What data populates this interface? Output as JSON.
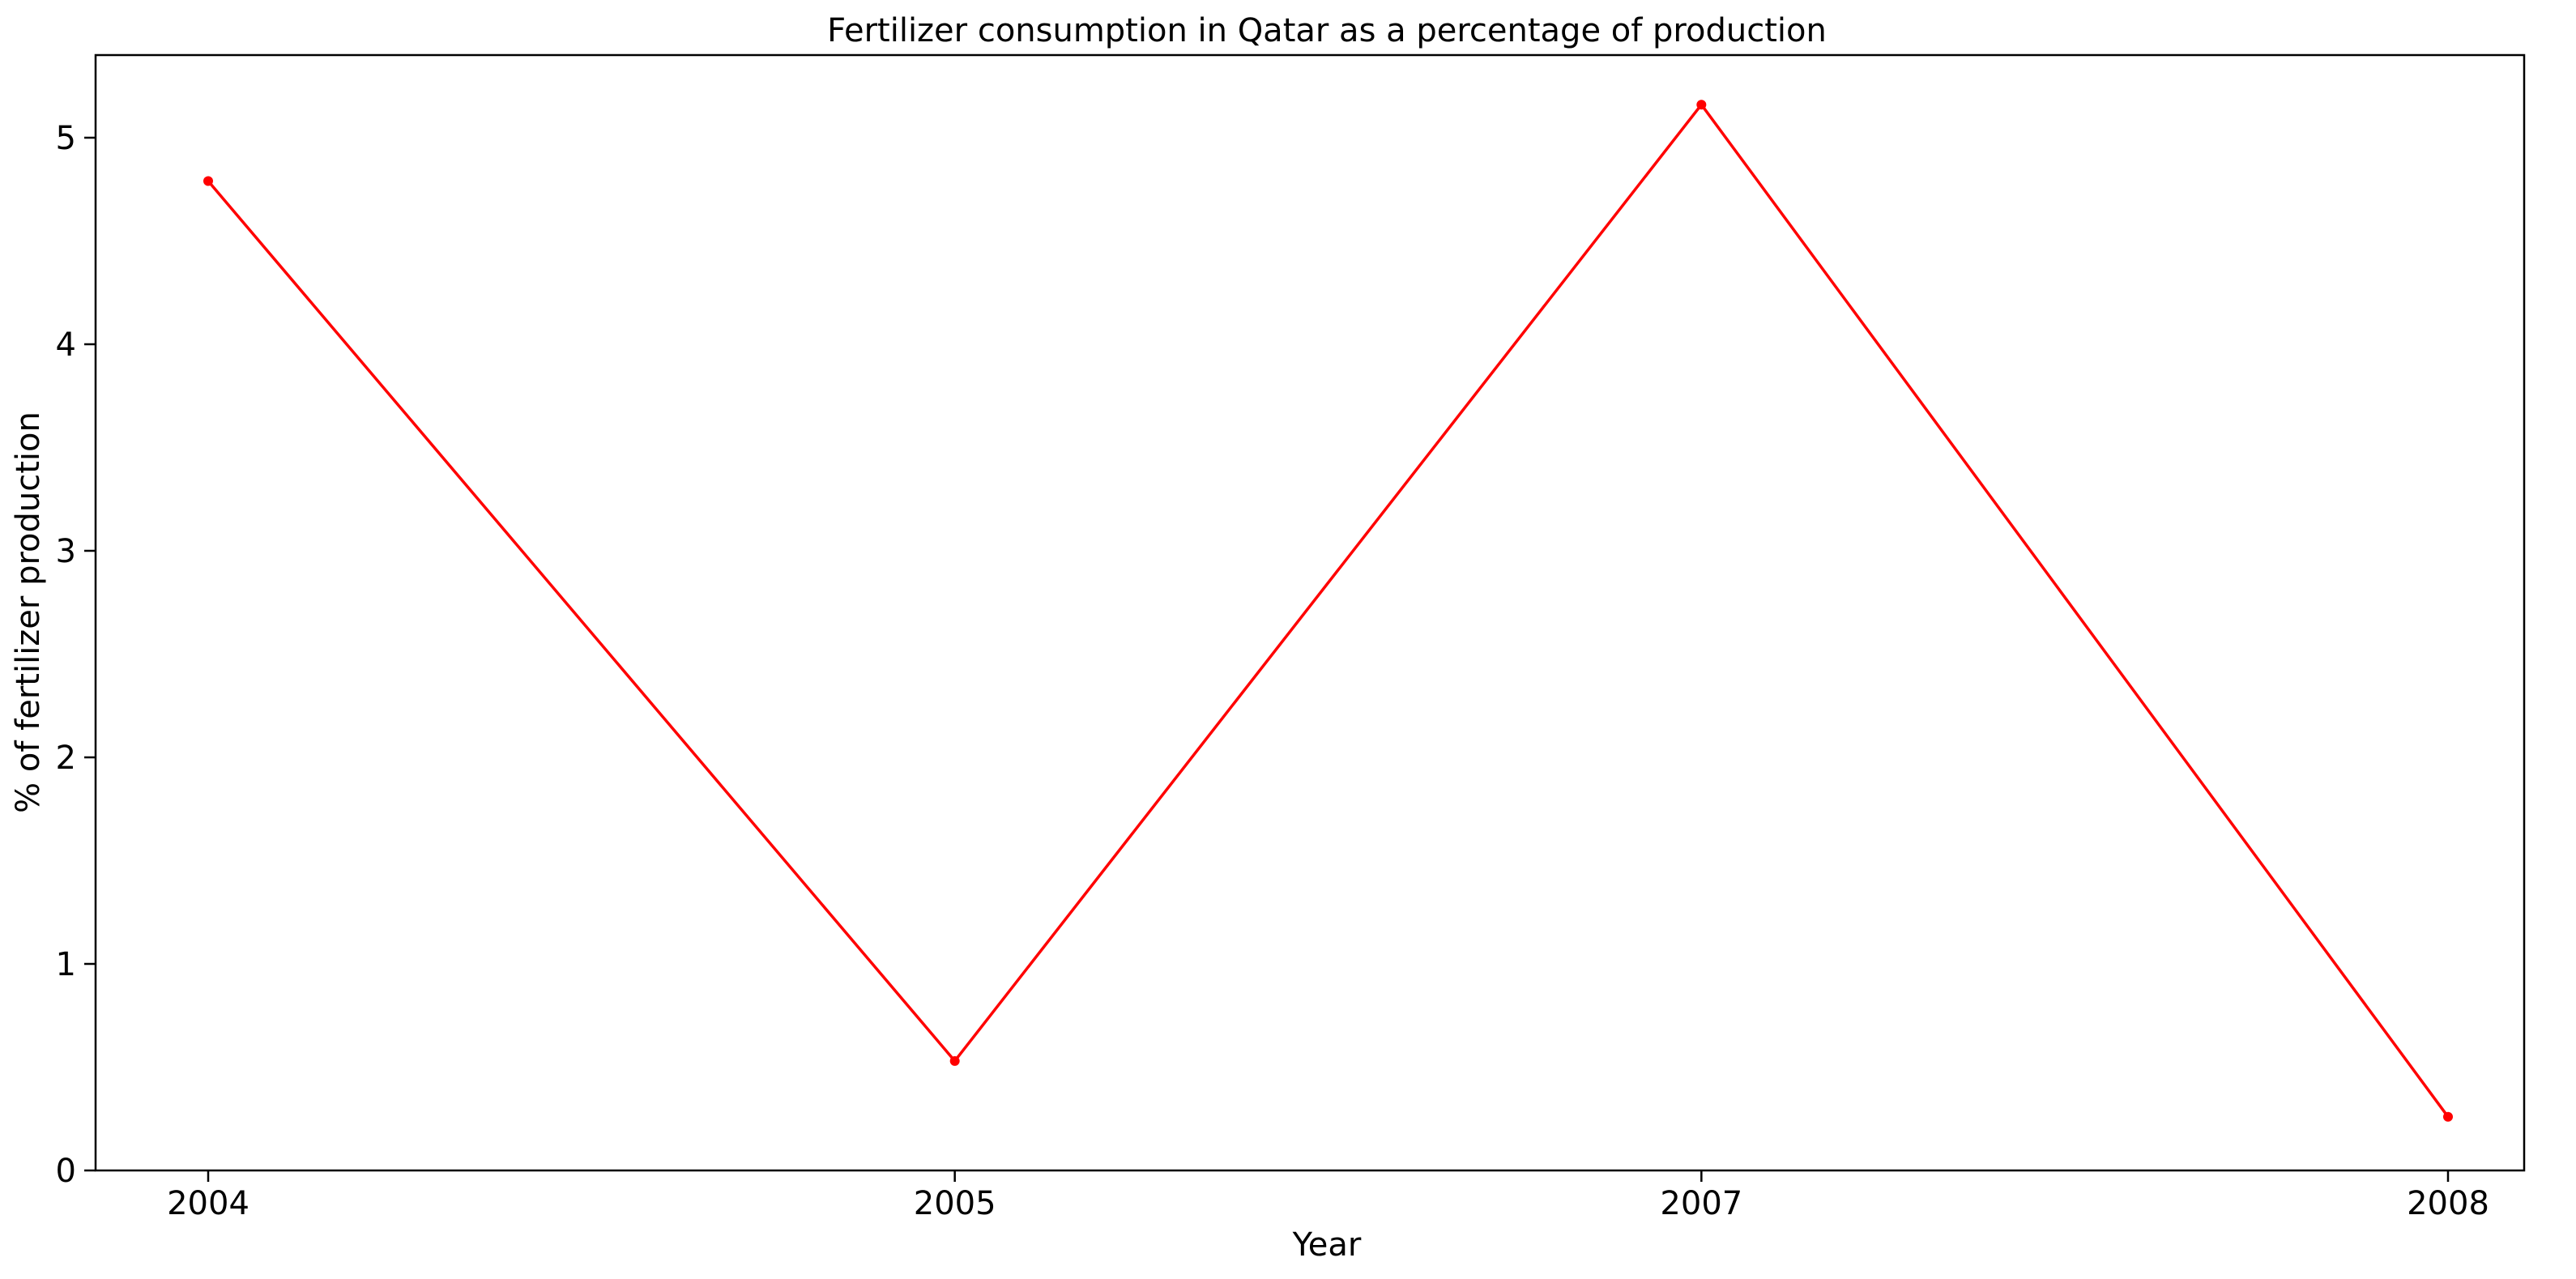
{
  "chart_data": {
    "type": "line",
    "title": "Fertilizer consumption in Qatar as a percentage of production",
    "xlabel": "Year",
    "ylabel": "% of fertilizer production",
    "categories": [
      "2004",
      "2005",
      "2007",
      "2008"
    ],
    "series": [
      {
        "values": [
          4.79,
          0.53,
          5.16,
          0.26
        ],
        "color": "#ff0000",
        "marker": "circle"
      }
    ],
    "ylim": [
      0,
      5.4
    ],
    "yticks": [
      0,
      1,
      2,
      3,
      4,
      5
    ],
    "grid": false,
    "legend": "none"
  }
}
